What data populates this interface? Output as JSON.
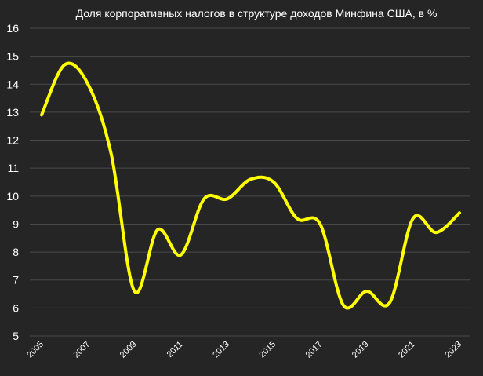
{
  "chart_data": {
    "type": "line",
    "title": "Доля корпоративных налогов в структуре доходов Минфина США, в %",
    "xlabel": "",
    "ylabel": "",
    "x": [
      2005,
      2006,
      2007,
      2008,
      2009,
      2010,
      2011,
      2012,
      2013,
      2014,
      2015,
      2016,
      2017,
      2018,
      2019,
      2020,
      2021,
      2022,
      2023
    ],
    "x_tick_labels": [
      "2005",
      "2007",
      "2009",
      "2011",
      "2013",
      "2015",
      "2017",
      "2019",
      "2021",
      "2023"
    ],
    "series": [
      {
        "values": [
          12.9,
          14.7,
          14.0,
          11.5,
          6.6,
          8.8,
          7.9,
          9.9,
          9.9,
          10.6,
          10.5,
          9.2,
          9.0,
          6.1,
          6.6,
          6.2,
          9.2,
          8.7,
          9.4
        ],
        "color": "#ffff00"
      }
    ],
    "ylim": [
      5,
      16
    ],
    "y_ticks": [
      5,
      6,
      7,
      8,
      9,
      10,
      11,
      12,
      13,
      14,
      15,
      16
    ],
    "grid": true,
    "legend": "none",
    "background": "#252525",
    "text_color": "#ffffff",
    "grid_color": "#4a4a4a"
  }
}
